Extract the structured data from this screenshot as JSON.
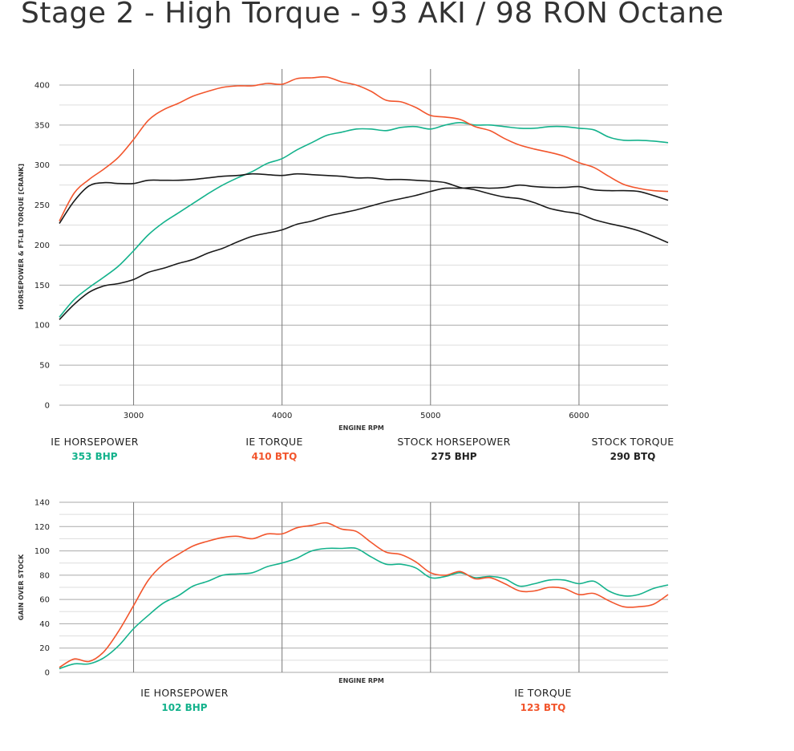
{
  "page": {
    "title": "Stage 2 - High Torque - 93 AKI / 98 RON Octane"
  },
  "colors": {
    "ie_hp": "#14b28c",
    "ie_tq": "#f2552c",
    "stock": "#1a1a1a",
    "grid": "#aaaaaa",
    "vgrid": "#777777"
  },
  "top_stats": [
    {
      "label": "IE HORSEPOWER",
      "value": "353 BHP",
      "color": "#14b28c"
    },
    {
      "label": "IE TORQUE",
      "value": "410 BTQ",
      "color": "#f2552c"
    },
    {
      "label": "STOCK HORSEPOWER",
      "value": "275 BHP",
      "color": "#222222"
    },
    {
      "label": "STOCK TORQUE",
      "value": "290 BTQ",
      "color": "#222222"
    }
  ],
  "bottom_stats": [
    {
      "label": "IE HORSEPOWER",
      "value": "102 BHP",
      "color": "#14b28c"
    },
    {
      "label": "IE TORQUE",
      "value": "123 BTQ",
      "color": "#f2552c"
    }
  ],
  "chart_data": [
    {
      "type": "line",
      "xlabel": "ENGINE RPM",
      "ylabel": "HORSEPOWER & FT-LB TORQUE [CRANK]",
      "xlim": [
        2500,
        6600
      ],
      "ylim": [
        0,
        420
      ],
      "xticks": [
        3000,
        4000,
        5000,
        6000
      ],
      "yticks": [
        0,
        50,
        100,
        150,
        200,
        250,
        300,
        350,
        400
      ],
      "grid": true,
      "series": [
        {
          "key": "ie_hp",
          "x": [
            2500,
            2600,
            2700,
            2800,
            2900,
            3000,
            3100,
            3200,
            3300,
            3400,
            3500,
            3600,
            3700,
            3800,
            3900,
            4000,
            4100,
            4200,
            4300,
            4400,
            4500,
            4600,
            4700,
            4800,
            4900,
            5000,
            5100,
            5200,
            5300,
            5400,
            5500,
            5600,
            5700,
            5800,
            5900,
            6000,
            6100,
            6200,
            6300,
            6400,
            6500,
            6600
          ],
          "y": [
            110,
            132,
            147,
            160,
            174,
            193,
            213,
            228,
            240,
            252,
            264,
            275,
            284,
            292,
            302,
            308,
            319,
            328,
            337,
            341,
            345,
            345,
            343,
            347,
            348,
            345,
            350,
            353,
            350,
            350,
            348,
            346,
            346,
            348,
            348,
            346,
            344,
            335,
            331,
            331,
            330,
            328
          ]
        },
        {
          "key": "ie_tq",
          "x": [
            2500,
            2600,
            2700,
            2800,
            2900,
            3000,
            3100,
            3200,
            3300,
            3400,
            3500,
            3600,
            3700,
            3800,
            3900,
            4000,
            4100,
            4200,
            4300,
            4400,
            4500,
            4600,
            4700,
            4800,
            4900,
            5000,
            5100,
            5200,
            5300,
            5400,
            5500,
            5600,
            5700,
            5800,
            5900,
            6000,
            6100,
            6200,
            6300,
            6400,
            6500,
            6600
          ],
          "y": [
            230,
            265,
            282,
            295,
            310,
            332,
            356,
            369,
            377,
            386,
            392,
            397,
            399,
            399,
            402,
            401,
            408,
            409,
            410,
            404,
            400,
            392,
            381,
            379,
            372,
            362,
            360,
            357,
            348,
            343,
            333,
            325,
            320,
            316,
            311,
            303,
            297,
            286,
            276,
            271,
            268,
            267
          ]
        },
        {
          "key": "stock_hp",
          "x": [
            2500,
            2600,
            2700,
            2800,
            2900,
            3000,
            3100,
            3200,
            3300,
            3400,
            3500,
            3600,
            3700,
            3800,
            3900,
            4000,
            4100,
            4200,
            4300,
            4400,
            4500,
            4600,
            4700,
            4800,
            4900,
            5000,
            5100,
            5200,
            5300,
            5400,
            5500,
            5600,
            5700,
            5800,
            5900,
            6000,
            6100,
            6200,
            6300,
            6400,
            6500,
            6600
          ],
          "y": [
            107,
            126,
            141,
            149,
            152,
            157,
            166,
            171,
            177,
            182,
            190,
            196,
            204,
            211,
            215,
            219,
            226,
            230,
            236,
            240,
            244,
            249,
            254,
            258,
            262,
            267,
            271,
            271,
            272,
            271,
            272,
            275,
            273,
            272,
            272,
            273,
            269,
            268,
            268,
            267,
            262,
            256
          ]
        },
        {
          "key": "stock_tq",
          "x": [
            2500,
            2600,
            2700,
            2800,
            2900,
            3000,
            3100,
            3200,
            3300,
            3400,
            3500,
            3600,
            3700,
            3800,
            3900,
            4000,
            4100,
            4200,
            4300,
            4400,
            4500,
            4600,
            4700,
            4800,
            4900,
            5000,
            5100,
            5200,
            5300,
            5400,
            5500,
            5600,
            5700,
            5800,
            5900,
            6000,
            6100,
            6200,
            6300,
            6400,
            6500,
            6600
          ],
          "y": [
            227,
            255,
            274,
            278,
            277,
            277,
            281,
            281,
            281,
            282,
            284,
            286,
            287,
            289,
            288,
            287,
            289,
            288,
            287,
            286,
            284,
            284,
            282,
            282,
            281,
            280,
            278,
            272,
            269,
            264,
            260,
            258,
            253,
            246,
            242,
            239,
            232,
            227,
            223,
            218,
            211,
            203
          ]
        }
      ]
    },
    {
      "type": "line",
      "xlabel": "ENGINE RPM",
      "ylabel": "GAIN OVER STOCK",
      "xlim": [
        2500,
        6600
      ],
      "ylim": [
        0,
        140
      ],
      "xticks": [
        3000,
        4000,
        5000,
        6000
      ],
      "yticks": [
        0,
        20,
        40,
        60,
        80,
        100,
        120,
        140
      ],
      "grid": true,
      "series": [
        {
          "key": "ie_hp",
          "x": [
            2500,
            2600,
            2700,
            2800,
            2900,
            3000,
            3100,
            3200,
            3300,
            3400,
            3500,
            3600,
            3700,
            3800,
            3900,
            4000,
            4100,
            4200,
            4300,
            4400,
            4500,
            4600,
            4700,
            4800,
            4900,
            5000,
            5100,
            5200,
            5300,
            5400,
            5500,
            5600,
            5700,
            5800,
            5900,
            6000,
            6100,
            6200,
            6300,
            6400,
            6500,
            6600
          ],
          "y": [
            3,
            7,
            7,
            12,
            22,
            36,
            47,
            57,
            63,
            71,
            75,
            80,
            81,
            82,
            87,
            90,
            94,
            100,
            102,
            102,
            102,
            95,
            89,
            89,
            86,
            78,
            79,
            82,
            78,
            79,
            77,
            71,
            73,
            76,
            76,
            73,
            75,
            67,
            63,
            64,
            69,
            72
          ]
        },
        {
          "key": "ie_tq",
          "x": [
            2500,
            2600,
            2700,
            2800,
            2900,
            3000,
            3100,
            3200,
            3300,
            3400,
            3500,
            3600,
            3700,
            3800,
            3900,
            4000,
            4100,
            4200,
            4300,
            4400,
            4500,
            4600,
            4700,
            4800,
            4900,
            5000,
            5100,
            5200,
            5300,
            5400,
            5500,
            5600,
            5700,
            5800,
            5900,
            6000,
            6100,
            6200,
            6300,
            6400,
            6500,
            6600
          ],
          "y": [
            4,
            11,
            9,
            17,
            34,
            55,
            76,
            89,
            97,
            104,
            108,
            111,
            112,
            110,
            114,
            114,
            119,
            121,
            123,
            118,
            116,
            107,
            99,
            97,
            91,
            82,
            80,
            83,
            77,
            78,
            73,
            67,
            67,
            70,
            69,
            64,
            65,
            59,
            54,
            54,
            56,
            64
          ]
        }
      ]
    }
  ]
}
